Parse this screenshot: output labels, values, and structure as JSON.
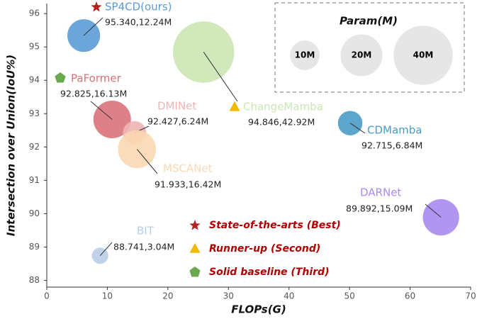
{
  "chart_data": {
    "type": "bubble",
    "x_label": "FLOPs(G)",
    "y_label": "Intersection over Union(IoU%)",
    "xlim": [
      0,
      70
    ],
    "xticks": [
      0,
      10,
      20,
      30,
      40,
      50,
      60,
      70
    ],
    "ylim": [
      87.8,
      96.3
    ],
    "yticks": [
      88,
      89,
      90,
      91,
      92,
      93,
      94,
      95,
      96
    ],
    "series": [
      {
        "name": "SP4CD(ours)",
        "color": "#5b9bd5",
        "marker": "star",
        "x": [
          6.1
        ],
        "values": [
          95.34
        ],
        "sizes": [
          12.24
        ],
        "value_labels": [
          "95.340,12.24M"
        ]
      },
      {
        "name": "PaFormer",
        "color": "#d9727a",
        "marker": "pentagon",
        "x": [
          10.8
        ],
        "values": [
          92.825
        ],
        "sizes": [
          16.13
        ],
        "value_labels": [
          "92.825,16.13M"
        ]
      },
      {
        "name": "DMINet",
        "color": "#eeb4b4",
        "x": [
          14.5
        ],
        "values": [
          92.427
        ],
        "sizes": [
          6.24
        ],
        "value_labels": [
          "92.427,6.24M"
        ]
      },
      {
        "name": "MSCANet",
        "color": "#fbd8b3",
        "x": [
          14.9
        ],
        "values": [
          91.933
        ],
        "sizes": [
          16.42
        ],
        "value_labels": [
          "91.933,16.42M"
        ]
      },
      {
        "name": "ChangeMamba",
        "color": "#cce5b4",
        "marker": "triangle",
        "x": [
          25.9
        ],
        "values": [
          94.846
        ],
        "sizes": [
          42.92
        ],
        "value_labels": [
          "94.846,42.92M"
        ]
      },
      {
        "name": "CDMamba",
        "color": "#4a9cc7",
        "x": [
          50.1
        ],
        "values": [
          92.715
        ],
        "sizes": [
          6.84
        ],
        "value_labels": [
          "92.715,6.84M"
        ]
      },
      {
        "name": "DARNet",
        "color": "#a98bf0",
        "x": [
          65.1
        ],
        "values": [
          89.892
        ],
        "sizes": [
          15.09
        ],
        "value_labels": [
          "89.892,15.09M"
        ]
      },
      {
        "name": "BIT",
        "color": "#b8cde6",
        "x": [
          8.8
        ],
        "values": [
          88.741
        ],
        "sizes": [
          3.04
        ],
        "value_labels": [
          "88.741,3.04M"
        ]
      }
    ],
    "size_legend": {
      "title": "Param(M)",
      "color": "#e6e6e6",
      "sizes": [
        {
          "value": 10,
          "label": "10M"
        },
        {
          "value": 20,
          "label": "20M"
        },
        {
          "value": 40,
          "label": "40M"
        }
      ]
    },
    "rank_legend": [
      {
        "marker": "star",
        "color": "#b22222",
        "label": "State-of-the-arts (Best)"
      },
      {
        "marker": "triangle",
        "color": "#f5b800",
        "label": "Runner-up (Second)"
      },
      {
        "marker": "pentagon",
        "color": "#6aa84f",
        "label": "Solid baseline (Third)"
      }
    ]
  }
}
